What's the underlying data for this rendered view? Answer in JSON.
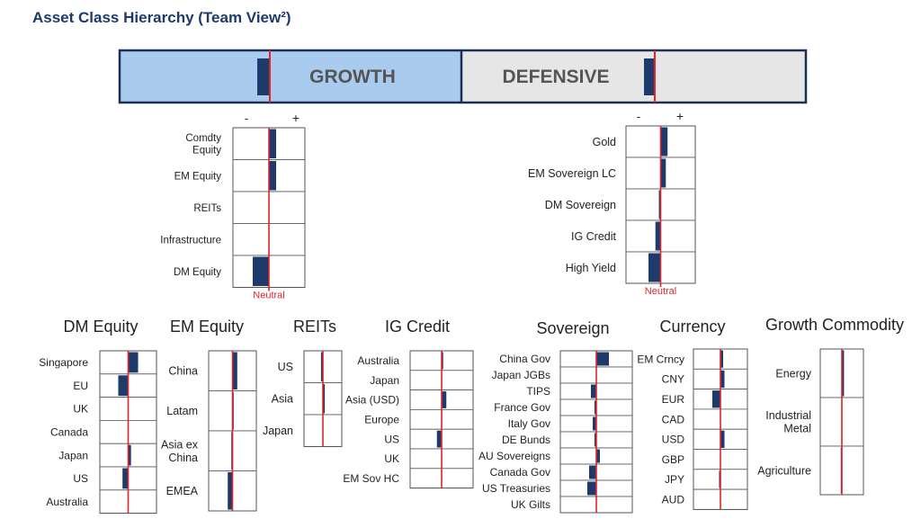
{
  "title": "Asset Class Hierarchy (Team View²)",
  "colors": {
    "navy": "#1e3a6a",
    "neutral_red": "#e0242a",
    "growth_fill": "#a9ccee",
    "defensive_fill": "#e6e6e6",
    "border": "#1b2f55",
    "title": "#1e3a6a",
    "text": "#333333"
  },
  "scale": {
    "minus": "-",
    "plus": "+",
    "neutral": "Neutral"
  },
  "chart_data": [
    {
      "type": "bar",
      "name": "top-bar",
      "categories": [
        "GROWTH",
        "DEFENSIVE"
      ],
      "values": [
        -0.35,
        -0.3
      ],
      "unit": "relative tilt, -1 (underweight) to +1 (overweight), 0 = neutral"
    },
    {
      "type": "bar",
      "name": "growth-panel",
      "categories": [
        "Comdty Equity",
        "EM Equity",
        "REITs",
        "Infrastructure",
        "DM Equity"
      ],
      "values": [
        0.2,
        0.2,
        0,
        0,
        -0.45
      ]
    },
    {
      "type": "bar",
      "name": "defensive-panel",
      "categories": [
        "Gold",
        "EM Sovereign LC",
        "DM Sovereign",
        "IG Credit",
        "High Yield"
      ],
      "values": [
        0.2,
        0.15,
        -0.05,
        -0.15,
        -0.35
      ]
    },
    {
      "type": "bar",
      "title": "DM Equity",
      "categories": [
        "Singapore",
        "EU",
        "UK",
        "Canada",
        "Japan",
        "US",
        "Australia"
      ],
      "values": [
        0.35,
        -0.35,
        0,
        0,
        0.1,
        -0.2,
        0
      ]
    },
    {
      "type": "bar",
      "title": "EM Equity",
      "categories": [
        "China",
        "Latam",
        "Asia ex China",
        "EMEA"
      ],
      "values": [
        0.2,
        0.05,
        -0.05,
        -0.2
      ]
    },
    {
      "type": "bar",
      "title": "REITs",
      "categories": [
        "US",
        "Asia",
        "Japan"
      ],
      "values": [
        -0.1,
        0.1,
        0
      ]
    },
    {
      "type": "bar",
      "title": "IG Credit",
      "categories": [
        "Australia",
        "Japan",
        "Asia (USD)",
        "Europe",
        "US",
        "UK",
        "EM Sov HC"
      ],
      "values": [
        0.05,
        0,
        0.15,
        0,
        -0.15,
        0,
        0
      ]
    },
    {
      "type": "bar",
      "title": "Sovereign",
      "categories": [
        "China Gov",
        "Japan JGBs",
        "TIPS",
        "France Gov",
        "Italy Gov",
        "DE Bunds",
        "AU Sovereigns",
        "Canada Gov",
        "US Treasuries",
        "UK Gilts"
      ],
      "values": [
        0.35,
        0,
        -0.15,
        -0.05,
        -0.1,
        -0.05,
        0.1,
        -0.2,
        -0.25,
        0
      ]
    },
    {
      "type": "bar",
      "title": "Currency",
      "categories": [
        "EM Crncy",
        "CNY",
        "EUR",
        "CAD",
        "USD",
        "GBP",
        "JPY",
        "AUD"
      ],
      "values": [
        0.1,
        0.15,
        -0.3,
        0,
        0.15,
        0,
        -0.05,
        0
      ]
    },
    {
      "type": "bar",
      "title": "Growth Commodity",
      "categories": [
        "Energy",
        "Industrial Metal",
        "Agriculture"
      ],
      "values": [
        0.1,
        0,
        -0.05
      ]
    }
  ]
}
